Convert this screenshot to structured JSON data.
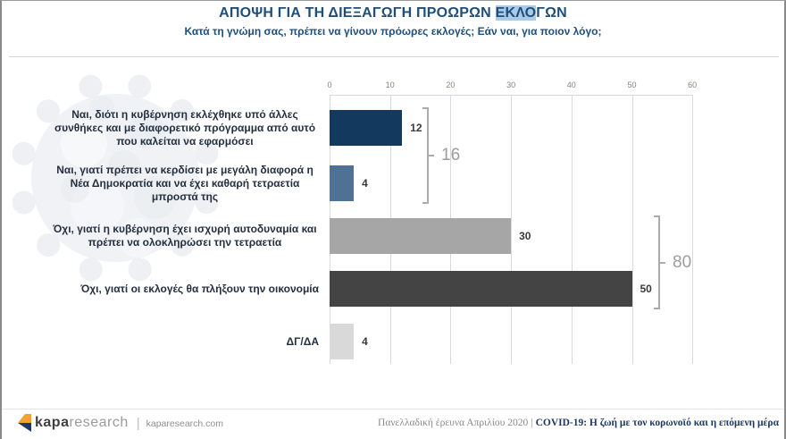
{
  "header": {
    "title_prefix": "ΑΠΟΨΗ ΓΙΑ ΤΗ ΔΙΕΞΑΓΩΓΗ ΠΡΟΩΡΩΝ ",
    "title_highlight": "ΕΚΛΟ",
    "title_suffix": "ΓΩΝ",
    "subtitle": "Κατά τη γνώμη σας, πρέπει να γίνουν πρόωρες εκλογές; Εάν ναι, για ποιον λόγο;"
  },
  "chart_data": {
    "type": "bar",
    "orientation": "horizontal",
    "categories": [
      "Ναι, διότι η κυβέρνηση εκλέχθηκε υπό άλλες\nσυνθήκες και με διαφορετικό πρόγραμμα από αυτό\nπου καλείται να εφαρμόσει",
      "Ναι, γιατί πρέπει να κερδίσει με μεγάλη διαφορά η\nΝέα Δημοκρατία και να έχει καθαρή τετραετία\nμπροστά της",
      "Όχι, γιατί η κυβέρνηση έχει ισχυρή αυτοδυναμία και\nπρέπει να ολοκληρώσει την τετραετία",
      "Όχι, γιατί οι εκλογές θα πλήξουν την οικονομία",
      "ΔΓ/ΔΑ"
    ],
    "values": [
      12,
      4,
      30,
      50,
      4
    ],
    "bar_colors": [
      "#13395E",
      "#4F7193",
      "#A6A6A6",
      "#444444",
      "#D9D9D9"
    ],
    "xlim": [
      0,
      60
    ],
    "x_ticks": [
      0,
      10,
      20,
      30,
      40,
      50,
      60
    ],
    "grid": true,
    "legend": "none",
    "brackets": [
      {
        "label": "16",
        "from_bar": 0,
        "to_bar": 1
      },
      {
        "label": "80",
        "from_bar": 2,
        "to_bar": 3
      }
    ]
  },
  "footer": {
    "logo": {
      "brand_bold": "kapa",
      "brand_light": "research",
      "separator": "|",
      "url": "kaparesearch.com"
    },
    "right": {
      "survey": "Πανελλαδική έρευνα Απριλίου 2020",
      "separator": "|",
      "report_title": "COVID-19: Η ζωή με τον κορωνοϊό και η επόμενη μέρα"
    }
  },
  "colors": {
    "title_blue": "#1F4E79",
    "highlight_blue": "#A9CBE9",
    "footer_navy": "#1F3864",
    "logo_orange": "#F2A431",
    "logo_navy": "#1F3864",
    "grid_gray": "#D9D9D9",
    "bracket_gray": "#ABABAB",
    "bar_navy": "#13395E",
    "bar_steel_blue": "#4F7193",
    "bar_gray": "#A6A6A6",
    "bar_dark_gray": "#444444",
    "bar_light_gray": "#D9D9D9"
  }
}
